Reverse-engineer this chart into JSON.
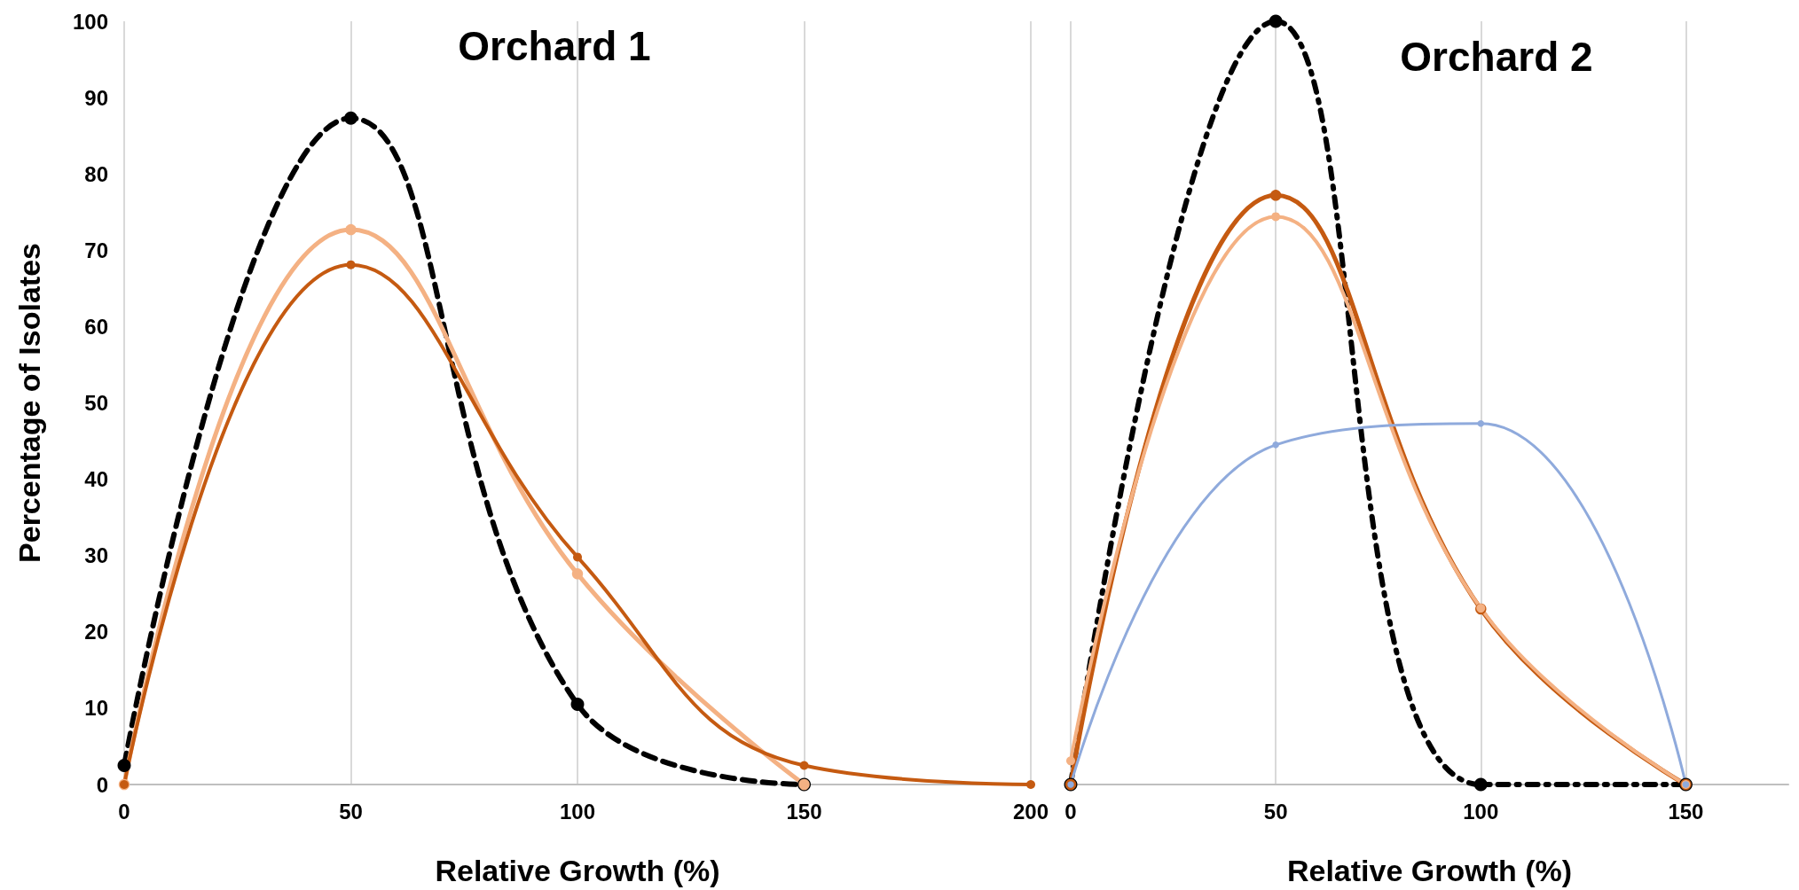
{
  "chart_data": [
    {
      "type": "line",
      "title": "Orchard 1",
      "xlabel": "Relative Growth (%)",
      "ylabel": "Percentage of Isolates",
      "x": [
        0,
        50,
        100,
        150,
        200
      ],
      "series": [
        {
          "color": "#000000",
          "line_style": "dashed",
          "values": [
            2.5,
            87.3,
            10.5,
            0,
            null
          ]
        },
        {
          "color": "#f4b183",
          "line_style": "solid",
          "values": [
            0,
            72.7,
            27.6,
            0,
            null
          ]
        },
        {
          "color": "#c55a11",
          "line_style": "solid",
          "values": [
            0,
            68.1,
            29.8,
            2.5,
            0
          ]
        }
      ],
      "xlim": [
        0,
        200
      ],
      "xticks": [
        0,
        50,
        100,
        150,
        200
      ],
      "ylim": [
        0,
        100
      ],
      "yticks": [
        0,
        10,
        20,
        30,
        40,
        50,
        60,
        70,
        80,
        90,
        100
      ],
      "grid": "x",
      "marker": "circle"
    },
    {
      "type": "line",
      "title": "Orchard 2",
      "xlabel": "Relative Growth (%)",
      "x": [
        0,
        50,
        100,
        150
      ],
      "series": [
        {
          "color": "#000000",
          "line_style": "dashdot",
          "values": [
            0,
            100,
            0,
            0
          ]
        },
        {
          "color": "#c55a11",
          "line_style": "solid",
          "values": [
            0,
            77.2,
            23,
            0
          ]
        },
        {
          "color": "#f4b183",
          "line_style": "solid",
          "values": [
            3.1,
            74.4,
            23.1,
            0
          ]
        },
        {
          "color": "#8faadc",
          "line_style": "solid",
          "values": [
            0,
            44.5,
            47.3,
            0
          ]
        }
      ],
      "xlim": [
        0,
        175
      ],
      "xticks": [
        0,
        50,
        100,
        150
      ],
      "ylim": [
        0,
        100
      ],
      "yticks": [
        0,
        10,
        20,
        30,
        40,
        50,
        60,
        70,
        80,
        90,
        100
      ],
      "grid": "x",
      "marker": "circle",
      "tick_labels": "x"
    }
  ]
}
